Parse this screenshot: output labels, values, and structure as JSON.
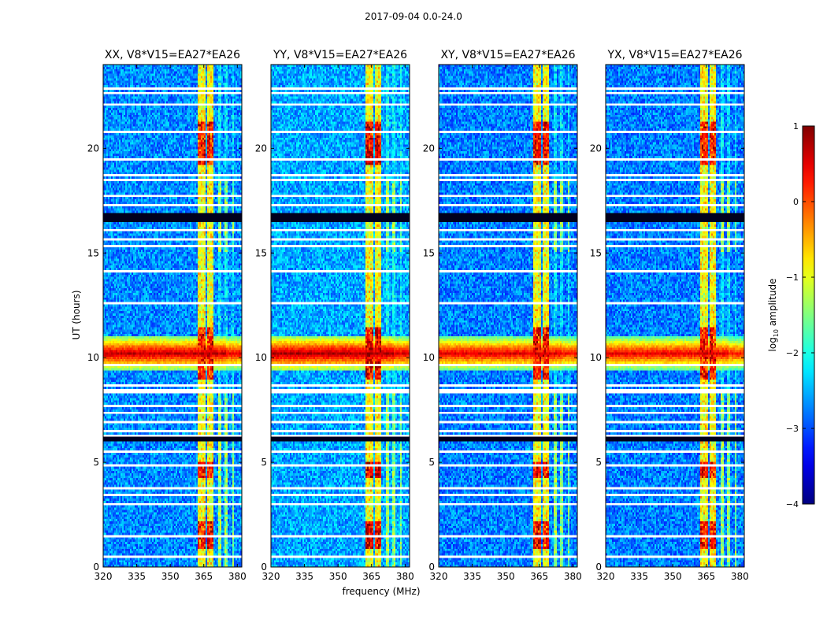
{
  "figure": {
    "suptitle": "2017-09-04 0.0-24.0",
    "xlabel": "frequency (MHz)",
    "ylabel": "UT (hours)"
  },
  "colorbar": {
    "label_prefix": "log",
    "label_sub": "10",
    "label_suffix": " amplitude",
    "range": [
      -4,
      1
    ],
    "ticks": [
      -4,
      -3,
      -2,
      -1,
      0,
      1
    ],
    "tick_labels": [
      "−4",
      "−3",
      "−2",
      "−1",
      "0",
      "1"
    ],
    "colormap": "jet"
  },
  "chart_data": {
    "type": "heatmap",
    "x_range": [
      320,
      382
    ],
    "y_range": [
      0,
      24
    ],
    "x_ticks": [
      320,
      335,
      350,
      365,
      380
    ],
    "x_tick_labels": [
      "320",
      "335",
      "350",
      "365",
      "380"
    ],
    "y_ticks": [
      0,
      5,
      10,
      15,
      20
    ],
    "y_tick_labels": [
      "0",
      "5",
      "10",
      "15",
      "20"
    ],
    "panels": [
      {
        "title": "XX, V8*V15=EA27*EA26",
        "background": -2.7,
        "rfi_peak": 0.3,
        "band_peak": 0.7
      },
      {
        "title": "YY, V8*V15=EA27*EA26",
        "background": -2.55,
        "rfi_peak": 0.6,
        "band_peak": 0.8
      },
      {
        "title": "XY, V8*V15=EA27*EA26",
        "background": -2.75,
        "rfi_peak": 0.4,
        "band_peak": 0.55
      },
      {
        "title": "YX, V8*V15=EA27*EA26",
        "background": -2.75,
        "rfi_peak": 0.3,
        "band_peak": 0.5
      }
    ],
    "rfi_channels": [
      {
        "center": 364.0,
        "width": 3.2,
        "strength": 1.0
      },
      {
        "center": 368.0,
        "width": 3.2,
        "strength": 1.0
      },
      {
        "center": 372.0,
        "width": 1.0,
        "strength": 0.45
      },
      {
        "center": 375.0,
        "width": 1.0,
        "strength": 0.35
      },
      {
        "center": 378.0,
        "width": 1.0,
        "strength": 0.3
      }
    ],
    "strong_rfi_intervals_ut": [
      [
        0.9,
        2.2
      ],
      [
        4.3,
        5.0
      ],
      [
        8.9,
        11.4
      ],
      [
        19.2,
        21.3
      ]
    ],
    "broadband_event": {
      "center_ut": 10.2,
      "width_ut": 0.5
    },
    "flagged_intervals_ut": [
      [
        3.35,
        3.5
      ],
      [
        3.55,
        3.65
      ],
      [
        3.75,
        3.85
      ],
      [
        4.85,
        4.95
      ],
      [
        5.45,
        5.55
      ],
      [
        6.0,
        6.3
      ],
      [
        6.45,
        6.55
      ],
      [
        6.9,
        7.0
      ],
      [
        7.35,
        7.45
      ],
      [
        7.6,
        7.7
      ],
      [
        8.3,
        8.5
      ],
      [
        8.6,
        8.75
      ],
      [
        9.6,
        9.7
      ],
      [
        11.95,
        12.05
      ],
      [
        12.55,
        12.65
      ],
      [
        13.15,
        13.25
      ],
      [
        14.05,
        14.15
      ],
      [
        14.35,
        14.45
      ],
      [
        15.3,
        15.4
      ],
      [
        15.6,
        15.7
      ],
      [
        16.05,
        16.15
      ],
      [
        16.45,
        16.65
      ],
      [
        16.7,
        16.95
      ],
      [
        17.25,
        17.35
      ],
      [
        17.65,
        17.75
      ],
      [
        18.4,
        18.5
      ],
      [
        18.7,
        18.8
      ],
      [
        19.4,
        19.5
      ],
      [
        20.75,
        20.85
      ],
      [
        22.05,
        22.15
      ],
      [
        22.55,
        22.65
      ],
      [
        22.8,
        22.9
      ],
      [
        0.45,
        0.55
      ],
      [
        1.45,
        1.55
      ],
      [
        2.95,
        3.05
      ]
    ]
  }
}
